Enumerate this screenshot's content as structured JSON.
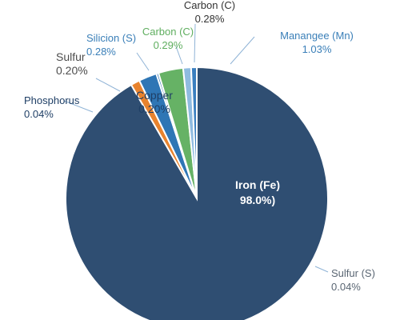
{
  "chart_data": {
    "type": "pie",
    "slices": [
      {
        "label": "Iron (Fe)",
        "value_text": "98.0%)",
        "value": 98.0,
        "color": "#2f4e72",
        "text_color": "#ffffff"
      },
      {
        "label": "Sulfur (S)",
        "value_text": "0.04%",
        "value": 0.04,
        "color": "#2f4e72",
        "text_color": "#5a6673"
      },
      {
        "label": "Phosphorus",
        "value_text": "0.04%",
        "value": 0.04,
        "color": "#e8832e",
        "text_color": "#1f3f66"
      },
      {
        "label": "Sulfur",
        "value_text": "0.20%",
        "value": 0.2,
        "color": "#2f76b5",
        "text_color": "#4d4d4d"
      },
      {
        "label": "Silicion (S)",
        "value_text": "0.28%",
        "value": 0.28,
        "color": "#2f76b5",
        "text_color": "#3a7fb8"
      },
      {
        "label": "Copper",
        "value_text": "0.20%",
        "value": 0.2,
        "color": "#66b265",
        "text_color": "#1f3f66"
      },
      {
        "label": "Carbon (C)",
        "value_text": "0.29%",
        "value": 0.29,
        "color": "#66b265",
        "text_color": "#5fae5f"
      },
      {
        "label": "Carbon (C)",
        "value_text": "0.28%",
        "value": 0.28,
        "color": "#8fbbe0",
        "text_color": "#333333"
      },
      {
        "label": "Manangee (Mn)",
        "value_text": "1.03%",
        "value": 1.03,
        "color": "#3b7fbf",
        "text_color": "#3a7fb8"
      }
    ]
  }
}
